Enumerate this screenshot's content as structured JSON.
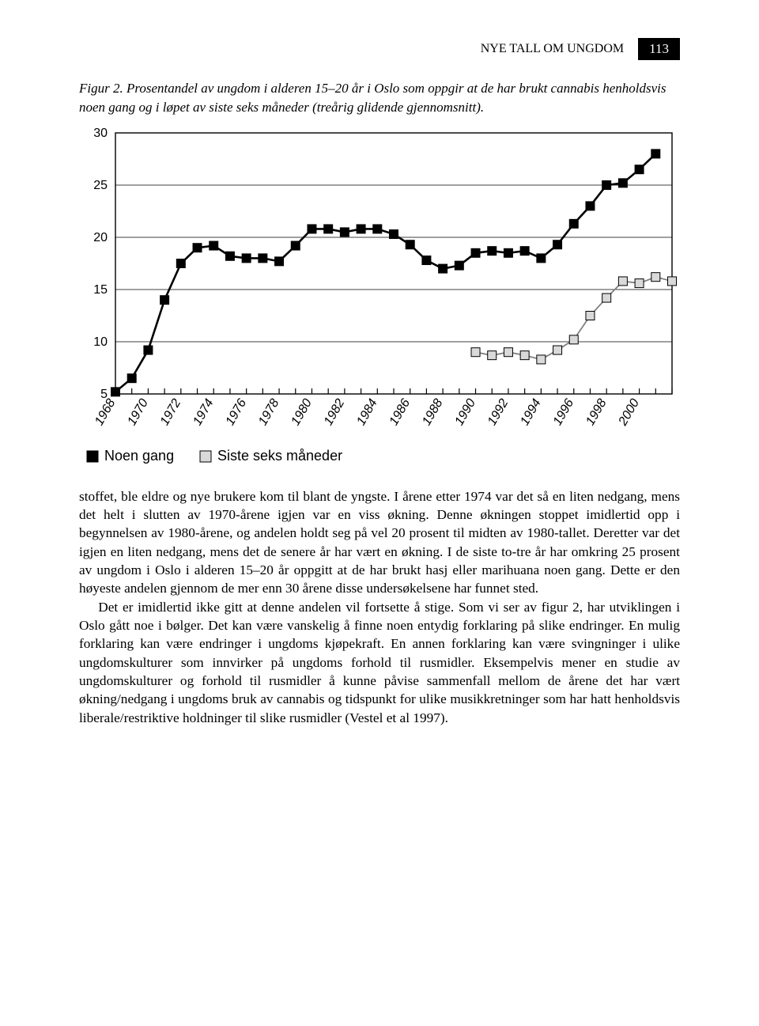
{
  "header": {
    "title": "NYE TALL OM UNGDOM",
    "page_number": "113"
  },
  "figure": {
    "label": "Figur 2.",
    "caption": "Prosentandel av ungdom i alderen 15–20 år i Oslo som oppgir at de har brukt cannabis henholdsvis noen gang og i løpet av siste seks måneder (treårig glidende gjennomsnitt)."
  },
  "chart": {
    "type": "line",
    "ylim": [
      5,
      30
    ],
    "ytick_step": 5,
    "yticks": [
      5,
      10,
      15,
      20,
      25,
      30
    ],
    "xticks_years": [
      1968,
      1970,
      1972,
      1974,
      1976,
      1978,
      1980,
      1982,
      1984,
      1986,
      1988,
      1990,
      1992,
      1994,
      1996,
      1998,
      2000
    ],
    "background_color": "#ffffff",
    "panel_fill": "#ffffff",
    "grid_color": "#000000",
    "grid_width": 0.7,
    "axis_color": "#000000",
    "axis_width": 1.4,
    "tick_fontsize": 16,
    "tick_color": "#000000",
    "legend": {
      "position": "bottom-left",
      "fontsize": 18,
      "items": [
        {
          "label": "Noen gang",
          "marker_fill": "#000000",
          "marker_stroke": "#000000",
          "line_color": "#000000"
        },
        {
          "label": "Siste seks måneder",
          "marker_fill": "#d9d9d9",
          "marker_stroke": "#000000",
          "line_color": "#808080"
        }
      ]
    },
    "series": [
      {
        "name": "noen_gang",
        "line_color": "#000000",
        "line_width": 2.6,
        "marker": "square",
        "marker_size": 11,
        "marker_fill": "#000000",
        "marker_stroke": "#000000",
        "points": [
          {
            "x": 1968,
            "y": 5.2
          },
          {
            "x": 1969,
            "y": 6.5
          },
          {
            "x": 1970,
            "y": 9.2
          },
          {
            "x": 1971,
            "y": 14.0
          },
          {
            "x": 1972,
            "y": 17.5
          },
          {
            "x": 1973,
            "y": 19.0
          },
          {
            "x": 1974,
            "y": 19.2
          },
          {
            "x": 1975,
            "y": 18.2
          },
          {
            "x": 1976,
            "y": 18.0
          },
          {
            "x": 1977,
            "y": 18.0
          },
          {
            "x": 1978,
            "y": 17.7
          },
          {
            "x": 1979,
            "y": 19.2
          },
          {
            "x": 1980,
            "y": 20.8
          },
          {
            "x": 1981,
            "y": 20.8
          },
          {
            "x": 1982,
            "y": 20.5
          },
          {
            "x": 1983,
            "y": 20.8
          },
          {
            "x": 1984,
            "y": 20.8
          },
          {
            "x": 1985,
            "y": 20.3
          },
          {
            "x": 1986,
            "y": 19.3
          },
          {
            "x": 1987,
            "y": 17.8
          },
          {
            "x": 1988,
            "y": 17.0
          },
          {
            "x": 1989,
            "y": 17.3
          },
          {
            "x": 1990,
            "y": 18.5
          },
          {
            "x": 1991,
            "y": 18.7
          },
          {
            "x": 1992,
            "y": 18.5
          },
          {
            "x": 1993,
            "y": 18.7
          },
          {
            "x": 1994,
            "y": 18.0
          },
          {
            "x": 1995,
            "y": 19.3
          },
          {
            "x": 1996,
            "y": 21.3
          },
          {
            "x": 1997,
            "y": 23.0
          },
          {
            "x": 1998,
            "y": 25.0
          },
          {
            "x": 1999,
            "y": 25.2
          },
          {
            "x": 2000,
            "y": 26.5
          },
          {
            "x": 2001,
            "y": 28.0
          }
        ]
      },
      {
        "name": "siste_seks",
        "line_color": "#808080",
        "line_width": 1.8,
        "marker": "square",
        "marker_size": 11,
        "marker_fill": "#d9d9d9",
        "marker_stroke": "#000000",
        "points": [
          {
            "x": 1990,
            "y": 9.0
          },
          {
            "x": 1991,
            "y": 8.7
          },
          {
            "x": 1992,
            "y": 9.0
          },
          {
            "x": 1993,
            "y": 8.7
          },
          {
            "x": 1994,
            "y": 8.3
          },
          {
            "x": 1995,
            "y": 9.2
          },
          {
            "x": 1996,
            "y": 10.2
          },
          {
            "x": 1997,
            "y": 12.5
          },
          {
            "x": 1998,
            "y": 14.2
          },
          {
            "x": 1999,
            "y": 15.8
          },
          {
            "x": 2000,
            "y": 15.6
          },
          {
            "x": 2001,
            "y": 16.2
          },
          {
            "x": 2002,
            "y": 15.8
          }
        ]
      }
    ]
  },
  "body": {
    "p1": "stoffet, ble eldre og nye brukere kom til blant de yngste. I årene etter 1974 var det så en liten nedgang, mens det helt i slutten av 1970-årene igjen var en viss økning. Denne økningen stoppet imidlertid opp i begynnelsen av 1980-årene, og andelen holdt seg på vel 20 prosent til midten av 1980-tallet. Deretter var det igjen en liten nedgang, mens det de senere år har vært en økning. I de siste to-tre år har omkring 25 prosent av ungdom i Oslo i alderen 15–20 år oppgitt at de har brukt hasj eller marihuana noen gang. Dette er den høyeste andelen gjennom de mer enn 30 årene disse undersøkelsene har funnet sted.",
    "p2": "Det er imidlertid ikke gitt at denne andelen vil fortsette å stige. Som vi ser av figur 2, har utviklingen i Oslo gått noe i bølger. Det kan være vanskelig å finne noen entydig forklaring på slike endringer. En mulig forklaring kan være endringer i ungdoms kjøpekraft. En annen forklaring kan være svingninger i ulike ungdomskulturer som innvirker på ungdoms forhold til rusmidler. Eksempelvis mener en studie av ungdomskulturer og forhold til rusmidler å kunne påvise sammenfall mellom de årene det har vært økning/nedgang i ungdoms bruk av cannabis og tidspunkt for ulike musikkretninger som har hatt henholdsvis liberale/restriktive holdninger til slike rusmidler (Vestel et al 1997)."
  }
}
